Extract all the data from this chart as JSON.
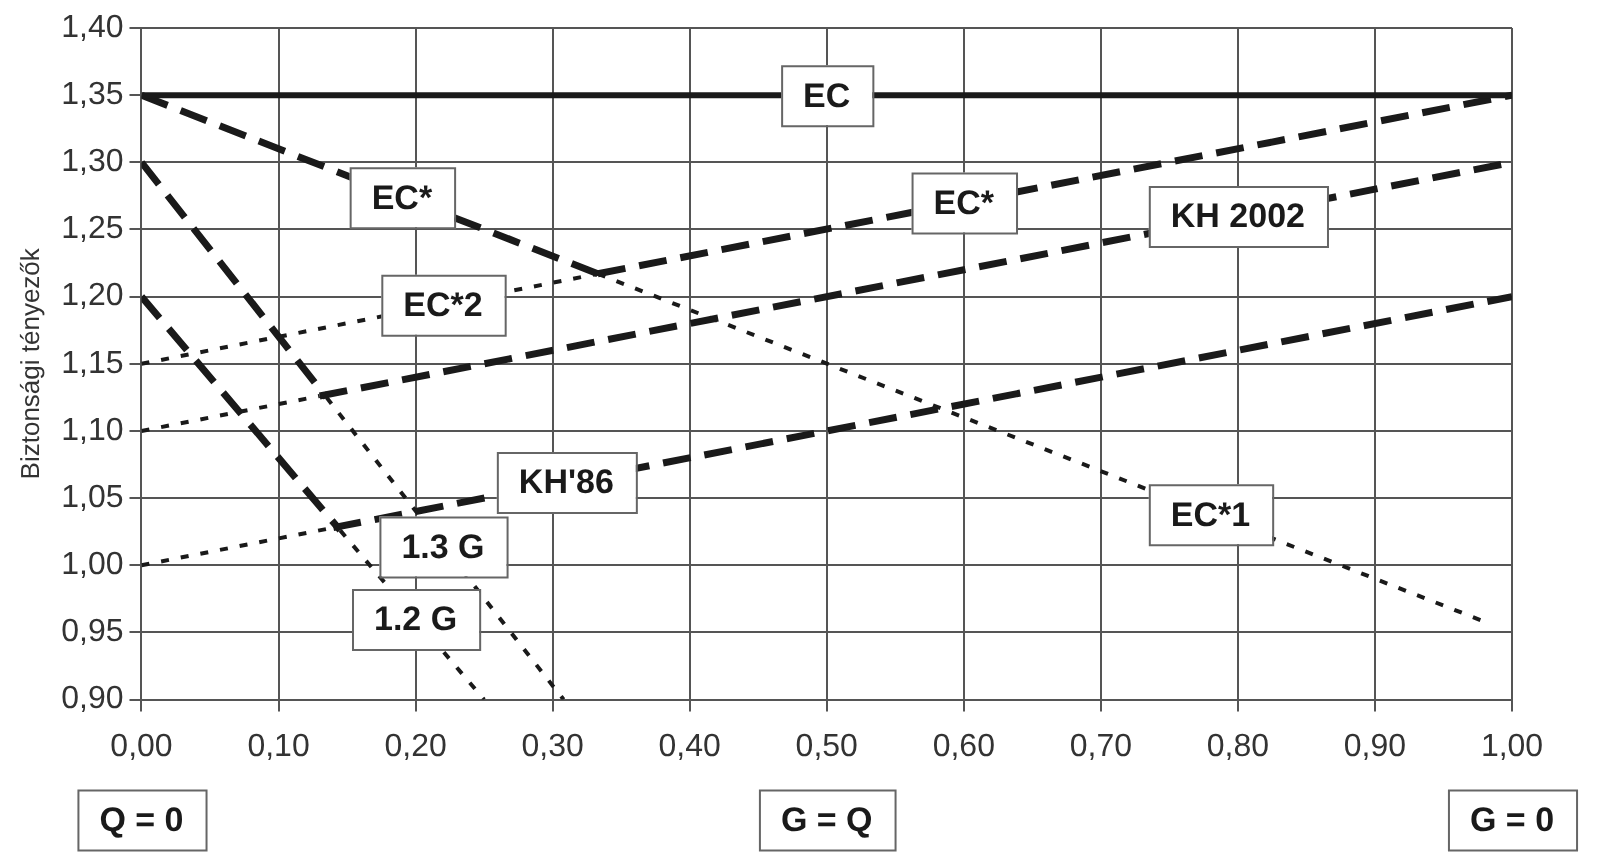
{
  "chart_data": {
    "type": "line",
    "ylabel": "Biztonsági tényezők",
    "xlim": [
      0,
      1
    ],
    "ylim": [
      0.9,
      1.4
    ],
    "xticks": [
      {
        "value": 0,
        "label": "0,00"
      },
      {
        "value": 0.1,
        "label": "0,10"
      },
      {
        "value": 0.2,
        "label": "0,20"
      },
      {
        "value": 0.3,
        "label": "0,30"
      },
      {
        "value": 0.4,
        "label": "0,40"
      },
      {
        "value": 0.5,
        "label": "0,50"
      },
      {
        "value": 0.6,
        "label": "0,60"
      },
      {
        "value": 0.7,
        "label": "0,70"
      },
      {
        "value": 0.8,
        "label": "0,80"
      },
      {
        "value": 0.9,
        "label": "0,90"
      },
      {
        "value": 1,
        "label": "1,00"
      }
    ],
    "yticks": [
      {
        "value": 0.9,
        "label": "0,90"
      },
      {
        "value": 0.95,
        "label": "0,95"
      },
      {
        "value": 1,
        "label": "1,00"
      },
      {
        "value": 1.05,
        "label": "1,05"
      },
      {
        "value": 1.1,
        "label": "1,10"
      },
      {
        "value": 1.15,
        "label": "1,15"
      },
      {
        "value": 1.2,
        "label": "1,20"
      },
      {
        "value": 1.25,
        "label": "1,25"
      },
      {
        "value": 1.3,
        "label": "1,30"
      },
      {
        "value": 1.35,
        "label": "1,35"
      },
      {
        "value": 1.4,
        "label": "1,40"
      }
    ],
    "grid": true,
    "legend": false,
    "marker": "none",
    "series": [
      {
        "color": "#1a1a1a",
        "line_style": "solid",
        "x": [
          0,
          1
        ],
        "values": [
          1.35,
          1.35
        ]
      },
      {
        "color": "#1a1a1a",
        "line_style": "dashed",
        "x": [
          0,
          0.333
        ],
        "values": [
          1.35,
          1.217
        ]
      },
      {
        "color": "#1a1a1a",
        "line_style": "dashed",
        "x": [
          0.333,
          1
        ],
        "values": [
          1.217,
          1.35
        ]
      },
      {
        "color": "#1a1a1a",
        "line_style": "dotted",
        "x": [
          0.333,
          0.98
        ],
        "values": [
          1.217,
          0.958
        ]
      },
      {
        "color": "#1a1a1a",
        "line_style": "dotted",
        "x": [
          0,
          0.333
        ],
        "values": [
          1.15,
          1.217
        ]
      },
      {
        "color": "#1a1a1a",
        "line_style": "dotted",
        "x": [
          0,
          0.13
        ],
        "values": [
          1.1,
          1.126
        ]
      },
      {
        "color": "#1a1a1a",
        "line_style": "dashed",
        "x": [
          0.13,
          1
        ],
        "values": [
          1.126,
          1.3
        ]
      },
      {
        "color": "#1a1a1a",
        "line_style": "dotted",
        "x": [
          0,
          0.14
        ],
        "values": [
          1.0,
          1.028
        ]
      },
      {
        "color": "#1a1a1a",
        "line_style": "dashed",
        "x": [
          0.14,
          1
        ],
        "values": [
          1.028,
          1.2
        ]
      },
      {
        "color": "#1a1a1a",
        "line_style": "dashed",
        "x": [
          0,
          0.135
        ],
        "values": [
          1.3,
          1.125
        ]
      },
      {
        "color": "#1a1a1a",
        "line_style": "dotted",
        "x": [
          0.135,
          0.308
        ],
        "values": [
          1.125,
          0.9
        ]
      },
      {
        "color": "#1a1a1a",
        "line_style": "dashed",
        "x": [
          0,
          0.145
        ],
        "values": [
          1.2,
          1.026
        ]
      },
      {
        "color": "#1a1a1a",
        "line_style": "dotted",
        "x": [
          0.145,
          0.25
        ],
        "values": [
          1.026,
          0.9
        ]
      }
    ],
    "annotations": [
      {
        "text": "EC",
        "x": 0.5,
        "y": 1.35
      },
      {
        "text": "EC*",
        "x": 0.19,
        "y": 1.274
      },
      {
        "text": "EC*",
        "x": 0.6,
        "y": 1.27
      },
      {
        "text": "KH 2002",
        "x": 0.8,
        "y": 1.26
      },
      {
        "text": "EC*2",
        "x": 0.22,
        "y": 1.194
      },
      {
        "text": "KH'86",
        "x": 0.31,
        "y": 1.062
      },
      {
        "text": "EC*1",
        "x": 0.78,
        "y": 1.038
      },
      {
        "text": "1.2 G",
        "x": 0.2,
        "y": 0.96
      },
      {
        "text": "1.3 G",
        "x": 0.22,
        "y": 1.014
      },
      "Q = 0",
      "G = Q",
      "G = 0"
    ]
  }
}
